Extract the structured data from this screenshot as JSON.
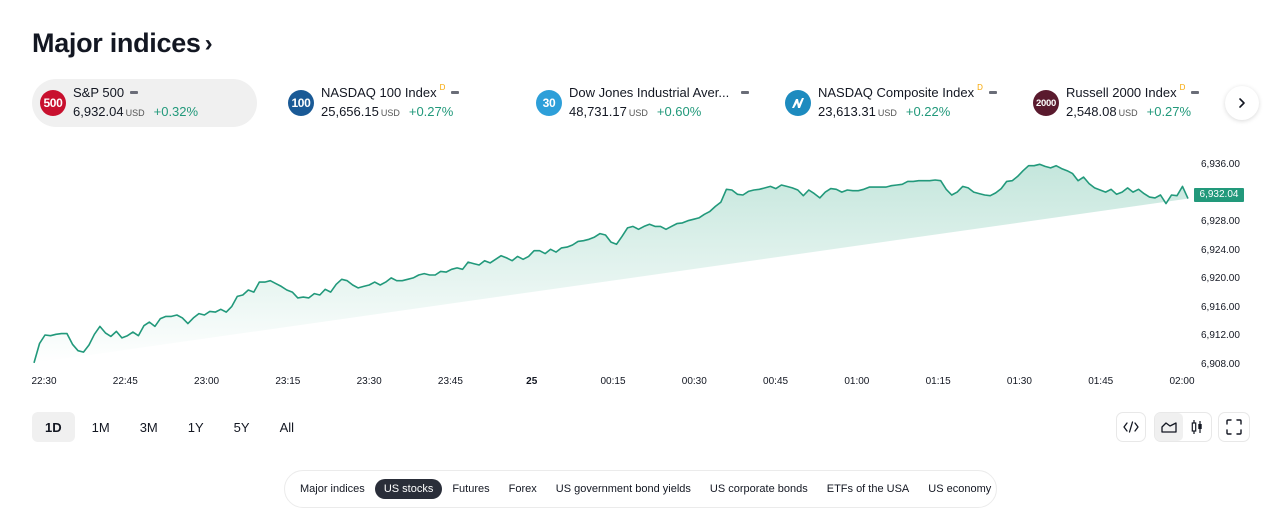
{
  "header": {
    "title": "Major indices",
    "chevron": "›"
  },
  "cards": [
    {
      "badge": "500",
      "badge_color": "#c8102e",
      "name": "S&P 500",
      "delayed": "",
      "price": "6,932.04",
      "currency": "USD",
      "change": "+0.32%",
      "active": true
    },
    {
      "badge": "100",
      "badge_color": "#1a5a96",
      "name": "NASDAQ 100 Index",
      "delayed": "D",
      "price": "25,656.15",
      "currency": "USD",
      "change": "+0.27%",
      "active": false
    },
    {
      "badge": "30",
      "badge_color": "#2d9fd9",
      "name": "Dow Jones Industrial Aver...",
      "delayed": "",
      "price": "48,731.17",
      "currency": "USD",
      "change": "+0.60%",
      "active": false
    },
    {
      "badge": "",
      "badge_icon": "nasdaq-logo-icon",
      "badge_color": "#1d8bbf",
      "name": "NASDAQ Composite Index",
      "delayed": "D",
      "price": "23,613.31",
      "currency": "USD",
      "change": "+0.22%",
      "active": false
    },
    {
      "badge": "2000",
      "badge_color": "#5a1a2e",
      "name": "Russell 2000 Index",
      "delayed": "D",
      "price": "2,548.08",
      "currency": "USD",
      "change": "+0.27%",
      "active": false
    }
  ],
  "next_button": "›",
  "ranges": [
    {
      "label": "1D",
      "active": true
    },
    {
      "label": "1M",
      "active": false
    },
    {
      "label": "3M",
      "active": false
    },
    {
      "label": "1Y",
      "active": false
    },
    {
      "label": "5Y",
      "active": false
    },
    {
      "label": "All",
      "active": false
    }
  ],
  "tools": {
    "embed": "code-embed-icon",
    "area": "area-chart-icon",
    "candles": "candlestick-icon",
    "fullscreen": "fullscreen-icon"
  },
  "tabs": [
    {
      "label": "Major indices",
      "active": false
    },
    {
      "label": "US stocks",
      "active": true
    },
    {
      "label": "Futures",
      "active": false
    },
    {
      "label": "Forex",
      "active": false
    },
    {
      "label": "US government bond yields",
      "active": false
    },
    {
      "label": "US corporate bonds",
      "active": false
    },
    {
      "label": "ETFs of the USA",
      "active": false
    },
    {
      "label": "US economy",
      "active": false
    }
  ],
  "colors": {
    "accent": "#22997b",
    "line": "#22997b",
    "fill_top": "#c4e6dc",
    "fill_bottom": "#ffffff"
  },
  "chart_data": {
    "type": "area",
    "title": "S&P 500",
    "current_value": "6,932.04",
    "xlabel": "",
    "ylabel": "",
    "x_ticks": [
      "22:30",
      "22:45",
      "23:00",
      "23:15",
      "23:30",
      "23:45",
      "25",
      "00:15",
      "00:30",
      "00:45",
      "01:00",
      "01:15",
      "01:30",
      "01:45",
      "02:00"
    ],
    "y_ticks": [
      "6,936.00",
      "6,932.00",
      "6,928.00",
      "6,924.00",
      "6,920.00",
      "6,916.00",
      "6,912.00",
      "6,908.00"
    ],
    "ylim": [
      6908,
      6936
    ],
    "grid": false,
    "x_minutes": [
      0,
      1,
      2,
      3,
      4,
      5,
      6,
      7,
      8,
      9,
      10,
      11,
      12,
      13,
      14,
      15,
      16,
      17,
      18,
      19,
      20,
      21,
      22,
      23,
      24,
      25,
      26,
      27,
      28,
      29,
      30,
      31,
      32,
      33,
      34,
      35,
      36,
      37,
      38,
      39,
      40,
      41,
      42,
      43,
      44,
      45,
      46,
      47,
      48,
      49,
      50,
      51,
      52,
      53,
      54,
      55,
      56,
      57,
      58,
      59,
      60,
      61,
      62,
      63,
      64,
      65,
      66,
      67,
      68,
      69,
      70,
      71,
      72,
      73,
      74,
      75,
      76,
      77,
      78,
      79,
      80,
      81,
      82,
      83,
      84,
      85,
      86,
      87,
      88,
      89,
      90,
      91,
      92,
      93,
      94,
      95,
      96,
      97,
      98,
      99,
      100,
      101,
      102,
      103,
      104,
      105,
      106,
      107,
      108,
      109,
      110,
      111,
      112,
      113,
      114,
      115,
      116,
      117,
      118,
      119,
      120,
      121,
      122,
      123,
      124,
      125,
      126,
      127,
      128,
      129,
      130,
      131,
      132,
      133,
      134,
      135,
      136,
      137,
      138,
      139,
      140,
      141,
      142,
      143,
      144,
      145,
      146,
      147,
      148,
      149,
      150,
      151,
      152,
      153,
      154,
      155,
      156,
      157,
      158,
      159,
      160,
      161,
      162,
      163,
      164,
      165,
      166,
      167,
      168,
      169,
      170,
      171,
      172,
      173,
      174,
      175,
      176,
      177,
      178,
      179,
      180,
      181,
      182,
      183,
      184,
      185,
      186,
      187,
      188,
      189,
      190,
      191,
      192,
      193,
      194,
      195,
      196,
      197,
      198,
      199,
      200,
      201,
      202,
      203,
      204,
      205,
      206,
      207,
      208,
      209,
      210
    ],
    "values": [
      6908.3,
      6911.0,
      6912.2,
      6912.1,
      6912.3,
      6912.4,
      6912.4,
      6910.9,
      6910.0,
      6909.8,
      6910.8,
      6912.3,
      6913.4,
      6912.5,
      6912.0,
      6912.7,
      6911.8,
      6912.1,
      6912.6,
      6912.1,
      6913.5,
      6914.0,
      6913.4,
      6914.5,
      6914.8,
      6914.8,
      6915.0,
      6914.6,
      6913.8,
      6914.6,
      6915.2,
      6915.0,
      6915.5,
      6915.4,
      6915.8,
      6915.4,
      6916.2,
      6917.6,
      6917.8,
      6918.5,
      6918.2,
      6919.6,
      6919.6,
      6919.8,
      6919.4,
      6919.0,
      6918.5,
      6918.2,
      6917.4,
      6917.5,
      6917.4,
      6918.0,
      6917.8,
      6918.6,
      6918.2,
      6919.3,
      6920.0,
      6919.8,
      6919.2,
      6918.8,
      6919.0,
      6919.2,
      6919.6,
      6919.2,
      6919.6,
      6920.2,
      6919.8,
      6919.8,
      6920.0,
      6920.2,
      6920.6,
      6920.8,
      6920.6,
      6920.6,
      6921.1,
      6921.0,
      6921.4,
      6921.6,
      6921.4,
      6922.4,
      6922.2,
      6922.0,
      6922.6,
      6922.3,
      6922.8,
      6923.3,
      6923.0,
      6922.6,
      6923.2,
      6922.8,
      6923.2,
      6924.0,
      6924.0,
      6923.6,
      6924.2,
      6923.8,
      6924.4,
      6924.5,
      6924.8,
      6925.3,
      6925.4,
      6925.6,
      6925.9,
      6926.4,
      6926.2,
      6925.2,
      6924.9,
      6926.0,
      6927.2,
      6927.4,
      6927.0,
      6927.4,
      6927.7,
      6927.4,
      6927.4,
      6927.0,
      6927.4,
      6927.8,
      6927.9,
      6928.2,
      6928.4,
      6928.6,
      6929.1,
      6929.5,
      6930.2,
      6930.8,
      6932.6,
      6932.5,
      6931.9,
      6931.8,
      6932.3,
      6932.5,
      6932.6,
      6932.8,
      6933.0,
      6932.7,
      6933.2,
      6933.0,
      6932.8,
      6932.5,
      6931.7,
      6932.5,
      6932.0,
      6931.4,
      6932.2,
      6932.7,
      6932.6,
      6932.2,
      6932.5,
      6932.4,
      6932.4,
      6932.6,
      6932.9,
      6932.9,
      6932.9,
      6932.9,
      6933.1,
      6933.2,
      6933.3,
      6933.7,
      6933.7,
      6933.8,
      6933.8,
      6933.8,
      6933.9,
      6933.8,
      6932.6,
      6931.8,
      6932.2,
      6933.0,
      6932.8,
      6932.2,
      6932.0,
      6931.8,
      6931.7,
      6932.1,
      6932.7,
      6933.7,
      6933.8,
      6934.4,
      6935.2,
      6935.9,
      6935.9,
      6936.1,
      6935.8,
      6935.6,
      6935.9,
      6935.5,
      6935.2,
      6934.8,
      6933.8,
      6934.3,
      6933.4,
      6932.8,
      6932.5,
      6932.2,
      6932.6,
      6931.9,
      6932.2,
      6932.8,
      6932.2,
      6932.6,
      6932.0,
      6931.5,
      6931.4,
      6931.8,
      6930.6,
      6931.8,
      6931.7,
      6933.0,
      6931.3,
      6932.0,
      6932.04
    ]
  }
}
